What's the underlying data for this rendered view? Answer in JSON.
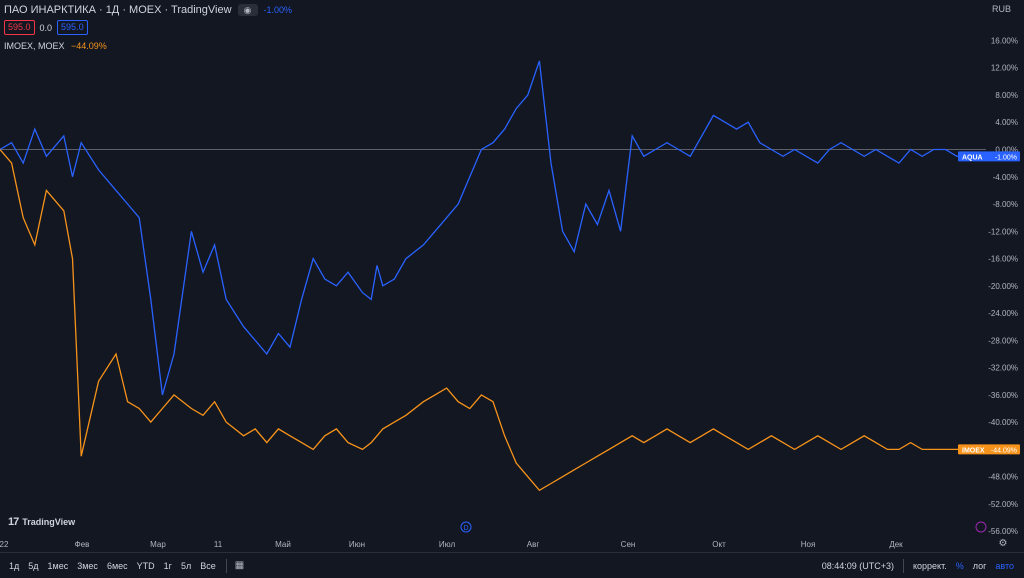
{
  "header": {
    "title": "ПАО ИНАРКТИКА · 1Д · MOEX · TradingView",
    "eye_icon": "eye-icon",
    "main_change": "-1.00%",
    "bid": "595.0",
    "spread": "0.0",
    "ask": "595.0",
    "compare_symbol": "IMOEX, MOEX",
    "compare_change": "−44.09%"
  },
  "currency": "RUB",
  "logo_text": "TradingView",
  "bottom_bar": {
    "ranges": [
      "1д",
      "5д",
      "1мес",
      "3мес",
      "6мес",
      "YTD",
      "1г",
      "5л",
      "Все"
    ],
    "calendar_icon": "calendar-icon",
    "clock": "08:44:09 (UTC+3)",
    "adjust": "коррект.",
    "percent": "%",
    "log": "лог",
    "auto": "авто"
  },
  "colors": {
    "aqua": "#2962ff",
    "imoex": "#f7931a",
    "background": "#131722"
  },
  "chart_data": {
    "type": "line",
    "x_labels": [
      "22",
      "Фев",
      "Мар",
      "11",
      "Май",
      "Июн",
      "Июл",
      "Авг",
      "Сен",
      "Окт",
      "Ноя",
      "Дек"
    ],
    "y_ticks": [
      "16.00%",
      "12.00%",
      "8.00%",
      "4.00%",
      "0.00%",
      "-4.00%",
      "-8.00%",
      "-12.00%",
      "-16.00%",
      "-20.00%",
      "-24.00%",
      "-28.00%",
      "-32.00%",
      "-36.00%",
      "-40.00%",
      "-44.00%",
      "-48.00%",
      "-52.00%",
      "-56.00%"
    ],
    "ylim": [
      -57,
      19
    ],
    "xlim": [
      0,
      340
    ],
    "grid": false,
    "event_marker": "D",
    "series": [
      {
        "name": "AQUA",
        "label": "AQUA",
        "last_label": "-1.00%",
        "color": "#2962ff",
        "x": [
          0,
          4,
          8,
          12,
          16,
          22,
          25,
          28,
          34,
          40,
          44,
          48,
          52,
          56,
          60,
          66,
          70,
          74,
          78,
          84,
          88,
          92,
          96,
          100,
          104,
          108,
          112,
          116,
          120,
          125,
          128,
          130,
          132,
          136,
          140,
          146,
          150,
          154,
          158,
          162,
          166,
          170,
          174,
          178,
          182,
          186,
          190,
          194,
          198,
          202,
          206,
          210,
          214,
          218,
          222,
          226,
          230,
          234,
          238,
          242,
          246,
          250,
          254,
          258,
          262,
          266,
          270,
          274,
          278,
          282,
          286,
          290,
          294,
          298,
          302,
          306,
          310,
          314,
          318,
          322,
          326,
          330,
          334,
          338
        ],
        "y": [
          0,
          1,
          -2,
          3,
          -1,
          2,
          -4,
          1,
          -3,
          -6,
          -8,
          -10,
          -22,
          -36,
          -30,
          -12,
          -18,
          -14,
          -22,
          -26,
          -28,
          -30,
          -27,
          -29,
          -22,
          -16,
          -19,
          -20,
          -18,
          -21,
          -22,
          -17,
          -20,
          -19,
          -16,
          -14,
          -12,
          -10,
          -8,
          -4,
          0,
          1,
          3,
          6,
          8,
          13,
          -2,
          -12,
          -15,
          -8,
          -11,
          -6,
          -12,
          2,
          -1,
          0,
          1,
          0,
          -1,
          2,
          5,
          4,
          3,
          4,
          1,
          0,
          -1,
          0,
          -1,
          -2,
          0,
          1,
          0,
          -1,
          0,
          -1,
          -2,
          0,
          -1,
          0,
          0,
          -1,
          -1,
          -1
        ]
      },
      {
        "name": "IMOEX",
        "label": "IMOEX",
        "last_label": "-44.09%",
        "color": "#f7931a",
        "x": [
          0,
          4,
          8,
          12,
          16,
          22,
          25,
          28,
          34,
          40,
          44,
          48,
          52,
          56,
          60,
          66,
          70,
          74,
          78,
          84,
          88,
          92,
          96,
          100,
          104,
          108,
          112,
          116,
          120,
          125,
          128,
          130,
          132,
          136,
          140,
          146,
          150,
          154,
          158,
          162,
          166,
          170,
          174,
          178,
          182,
          186,
          190,
          194,
          198,
          202,
          206,
          210,
          214,
          218,
          222,
          226,
          230,
          234,
          238,
          242,
          246,
          250,
          254,
          258,
          262,
          266,
          270,
          274,
          278,
          282,
          286,
          290,
          294,
          298,
          302,
          306,
          310,
          314,
          318,
          322,
          326,
          330,
          334,
          338
        ],
        "y": [
          0,
          -2,
          -10,
          -14,
          -6,
          -9,
          -16,
          -45,
          -34,
          -30,
          -37,
          -38,
          -40,
          -38,
          -36,
          -38,
          -39,
          -37,
          -40,
          -42,
          -41,
          -43,
          -41,
          -42,
          -43,
          -44,
          -42,
          -41,
          -43,
          -44,
          -43,
          -42,
          -41,
          -40,
          -39,
          -37,
          -36,
          -35,
          -37,
          -38,
          -36,
          -37,
          -42,
          -46,
          -48,
          -50,
          -49,
          -48,
          -47,
          -46,
          -45,
          -44,
          -43,
          -42,
          -43,
          -42,
          -41,
          -42,
          -43,
          -42,
          -41,
          -42,
          -43,
          -44,
          -43,
          -42,
          -43,
          -44,
          -43,
          -42,
          -43,
          -44,
          -43,
          -42,
          -43,
          -44,
          -44,
          -43,
          -44,
          -44,
          -44,
          -44,
          -44,
          -44
        ]
      }
    ]
  }
}
